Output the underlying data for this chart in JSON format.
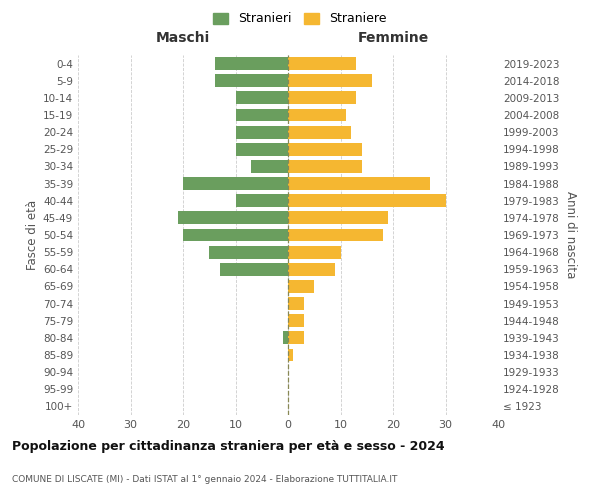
{
  "age_groups": [
    "100+",
    "95-99",
    "90-94",
    "85-89",
    "80-84",
    "75-79",
    "70-74",
    "65-69",
    "60-64",
    "55-59",
    "50-54",
    "45-49",
    "40-44",
    "35-39",
    "30-34",
    "25-29",
    "20-24",
    "15-19",
    "10-14",
    "5-9",
    "0-4"
  ],
  "birth_years": [
    "≤ 1923",
    "1924-1928",
    "1929-1933",
    "1934-1938",
    "1939-1943",
    "1944-1948",
    "1949-1953",
    "1954-1958",
    "1959-1963",
    "1964-1968",
    "1969-1973",
    "1974-1978",
    "1979-1983",
    "1984-1988",
    "1989-1993",
    "1994-1998",
    "1999-2003",
    "2004-2008",
    "2009-2013",
    "2014-2018",
    "2019-2023"
  ],
  "maschi": [
    0,
    0,
    0,
    0,
    1,
    0,
    0,
    0,
    13,
    15,
    20,
    21,
    10,
    20,
    7,
    10,
    10,
    10,
    10,
    14,
    14
  ],
  "femmine": [
    0,
    0,
    0,
    1,
    3,
    3,
    3,
    5,
    9,
    10,
    18,
    19,
    30,
    27,
    14,
    14,
    12,
    11,
    13,
    16,
    13
  ],
  "color_maschi": "#6a9e5e",
  "color_femmine": "#f5b731",
  "title": "Popolazione per cittadinanza straniera per età e sesso - 2024",
  "subtitle": "COMUNE DI LISCATE (MI) - Dati ISTAT al 1° gennaio 2024 - Elaborazione TUTTITALIA.IT",
  "label_left": "Maschi",
  "label_right": "Femmine",
  "ylabel_left": "Fasce di età",
  "ylabel_right": "Anni di nascita",
  "legend_maschi": "Stranieri",
  "legend_femmine": "Straniere",
  "xlim": 40,
  "background_color": "#ffffff",
  "grid_color": "#cccccc"
}
